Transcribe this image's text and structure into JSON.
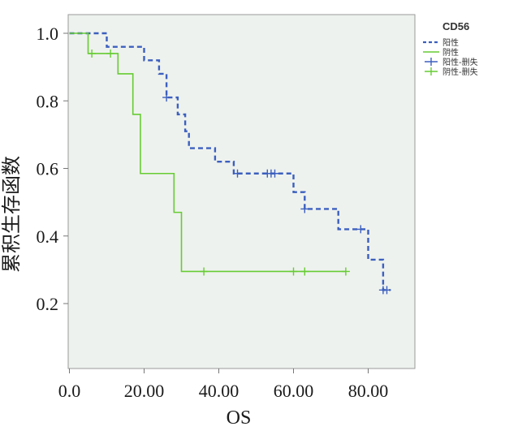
{
  "chart_data": {
    "type": "line",
    "step": true,
    "xlabel": "OS",
    "ylabel": "累积生存函数",
    "xlim": [
      0,
      90
    ],
    "ylim": [
      0.04,
      1.06
    ],
    "xticks": [
      {
        "value": 0,
        "label": "0.0"
      },
      {
        "value": 20,
        "label": "20.00"
      },
      {
        "value": 40,
        "label": "40.00"
      },
      {
        "value": 60,
        "label": "60.00"
      },
      {
        "value": 80,
        "label": "80.00"
      }
    ],
    "yticks": [
      {
        "value": 0.2,
        "label": "0.2"
      },
      {
        "value": 0.4,
        "label": "0.4"
      },
      {
        "value": 0.6,
        "label": "0.6"
      },
      {
        "value": 0.8,
        "label": "0.8"
      },
      {
        "value": 1.0,
        "label": "1.0"
      }
    ],
    "grid": false,
    "plot_background": "#eef2ee",
    "legend": {
      "title": "CD56",
      "position": "top-right",
      "entries": [
        "阳性",
        "阴性",
        "阳性-删失",
        "阴性-删失"
      ]
    },
    "series": [
      {
        "name": "阳性",
        "color": "#3b5fbf",
        "dashed": true,
        "steps": [
          [
            0,
            1.0
          ],
          [
            10,
            0.96
          ],
          [
            20,
            0.92
          ],
          [
            24,
            0.88
          ],
          [
            26,
            0.81
          ],
          [
            29,
            0.76
          ],
          [
            31,
            0.71
          ],
          [
            32,
            0.66
          ],
          [
            39,
            0.62
          ],
          [
            44,
            0.585
          ],
          [
            60,
            0.53
          ],
          [
            63,
            0.48
          ],
          [
            72,
            0.42
          ],
          [
            80,
            0.33
          ],
          [
            84,
            0.24
          ],
          [
            86,
            0.24
          ]
        ],
        "censored": [
          [
            26,
            0.81
          ],
          [
            45,
            0.585
          ],
          [
            53,
            0.585
          ],
          [
            54,
            0.585
          ],
          [
            55,
            0.585
          ],
          [
            63,
            0.48
          ],
          [
            78,
            0.42
          ],
          [
            84,
            0.24
          ],
          [
            85,
            0.24
          ]
        ]
      },
      {
        "name": "阴性",
        "color": "#66cc33",
        "dashed": false,
        "steps": [
          [
            0,
            1.0
          ],
          [
            5,
            0.94
          ],
          [
            13,
            0.88
          ],
          [
            17,
            0.76
          ],
          [
            19,
            0.585
          ],
          [
            28,
            0.47
          ],
          [
            30,
            0.295
          ],
          [
            74,
            0.295
          ]
        ],
        "censored": [
          [
            6,
            0.94
          ],
          [
            11,
            0.94
          ],
          [
            36,
            0.295
          ],
          [
            60,
            0.295
          ],
          [
            63,
            0.295
          ],
          [
            74,
            0.295
          ]
        ]
      }
    ]
  }
}
